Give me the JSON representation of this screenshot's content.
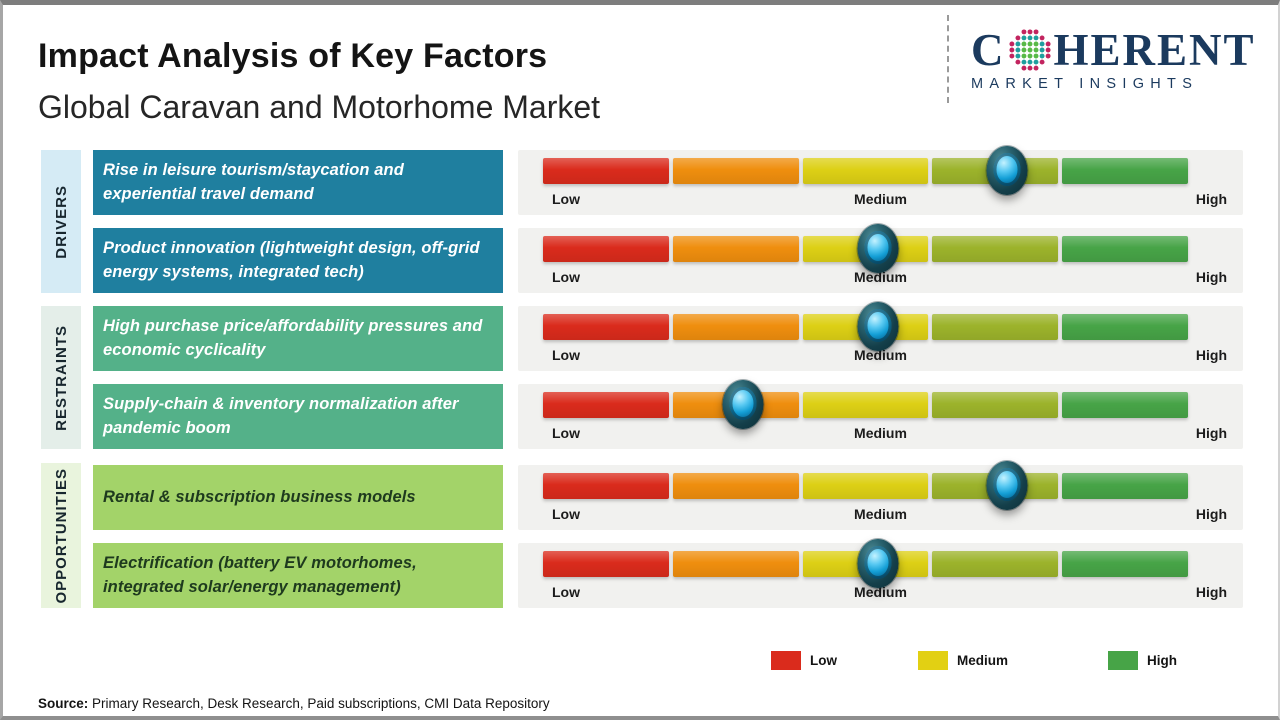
{
  "header": {
    "title": "Impact Analysis of Key Factors",
    "subtitle": "Global Caravan and Motorhome Market"
  },
  "logo": {
    "brand_c": "C",
    "brand_rest": "HERENT",
    "tagline": "MARKET INSIGHTS",
    "navy": "#1b3a5e",
    "globe_colors": {
      "outer": "#c2245f",
      "mid": "#1f9e9e",
      "inner": "#58b947"
    }
  },
  "scale": {
    "low": "Low",
    "medium": "Medium",
    "high": "High"
  },
  "palette": [
    "#da2b1c",
    "#ef8e0e",
    "#ddd015",
    "#9cb32b",
    "#47a447"
  ],
  "groups": [
    {
      "label": "DRIVERS",
      "strip": "#d5ebf5",
      "box": "#1f7f9f",
      "text_color": "#ffffff"
    },
    {
      "label": "RESTRAINTS",
      "strip": "#e4eee9",
      "box": "#54b189",
      "text_color": "#ffffff"
    },
    {
      "label": "OPPORTUNITIES",
      "strip": "#e9f4dd",
      "box": "#a3d369",
      "text_color": "#1e3a1e"
    }
  ],
  "rows": [
    {
      "text": "Rise in leisure tourism/staycation and experiential travel demand",
      "impact_pct": 72
    },
    {
      "text": "Product innovation (lightweight design, off-grid energy systems, integrated tech)",
      "impact_pct": 52
    },
    {
      "text": "High purchase price/affordability pressures and economic cyclicality",
      "impact_pct": 52
    },
    {
      "text": "Supply-chain & inventory normalization after pandemic boom",
      "impact_pct": 31
    },
    {
      "text": "Rental & subscription business models",
      "impact_pct": 72
    },
    {
      "text": "Electrification (battery EV motorhomes, integrated solar/energy management)",
      "impact_pct": 52
    }
  ],
  "legend": {
    "items": [
      {
        "label": "Low",
        "color": "#da2b1c"
      },
      {
        "label": "Medium",
        "color": "#e2d013"
      },
      {
        "label": "High",
        "color": "#47a447"
      }
    ]
  },
  "source": {
    "label": "Source:",
    "text": " Primary Research, Desk Research, Paid subscriptions, CMI Data Repository"
  },
  "chart_data": {
    "type": "bar",
    "title": "Impact Analysis of Key Factors",
    "subtitle": "Global Caravan and Motorhome Market",
    "scale_labels": [
      "Low",
      "Medium",
      "High"
    ],
    "categories": [
      "Rise in leisure tourism/staycation and experiential travel demand",
      "Product innovation (lightweight design, off-grid energy systems, integrated tech)",
      "High purchase price/affordability pressures and economic cyclicality",
      "Supply-chain & inventory normalization after pandemic boom",
      "Rental & subscription business models",
      "Electrification (battery EV motorhomes, integrated solar/energy management)"
    ],
    "group_of_category": [
      "Drivers",
      "Drivers",
      "Restraints",
      "Restraints",
      "Opportunities",
      "Opportunities"
    ],
    "values_pct_of_scale": [
      72,
      52,
      52,
      31,
      72,
      52
    ],
    "impact_reading": [
      "Medium-High",
      "Medium",
      "Medium",
      "Low-Medium",
      "Medium-High",
      "Medium"
    ],
    "xlim_labels": [
      "Low",
      "High"
    ],
    "legend": [
      "Low",
      "Medium",
      "High"
    ],
    "legend_position": "bottom",
    "source": "Primary Research, Desk Research, Paid subscriptions, CMI Data Repository"
  }
}
